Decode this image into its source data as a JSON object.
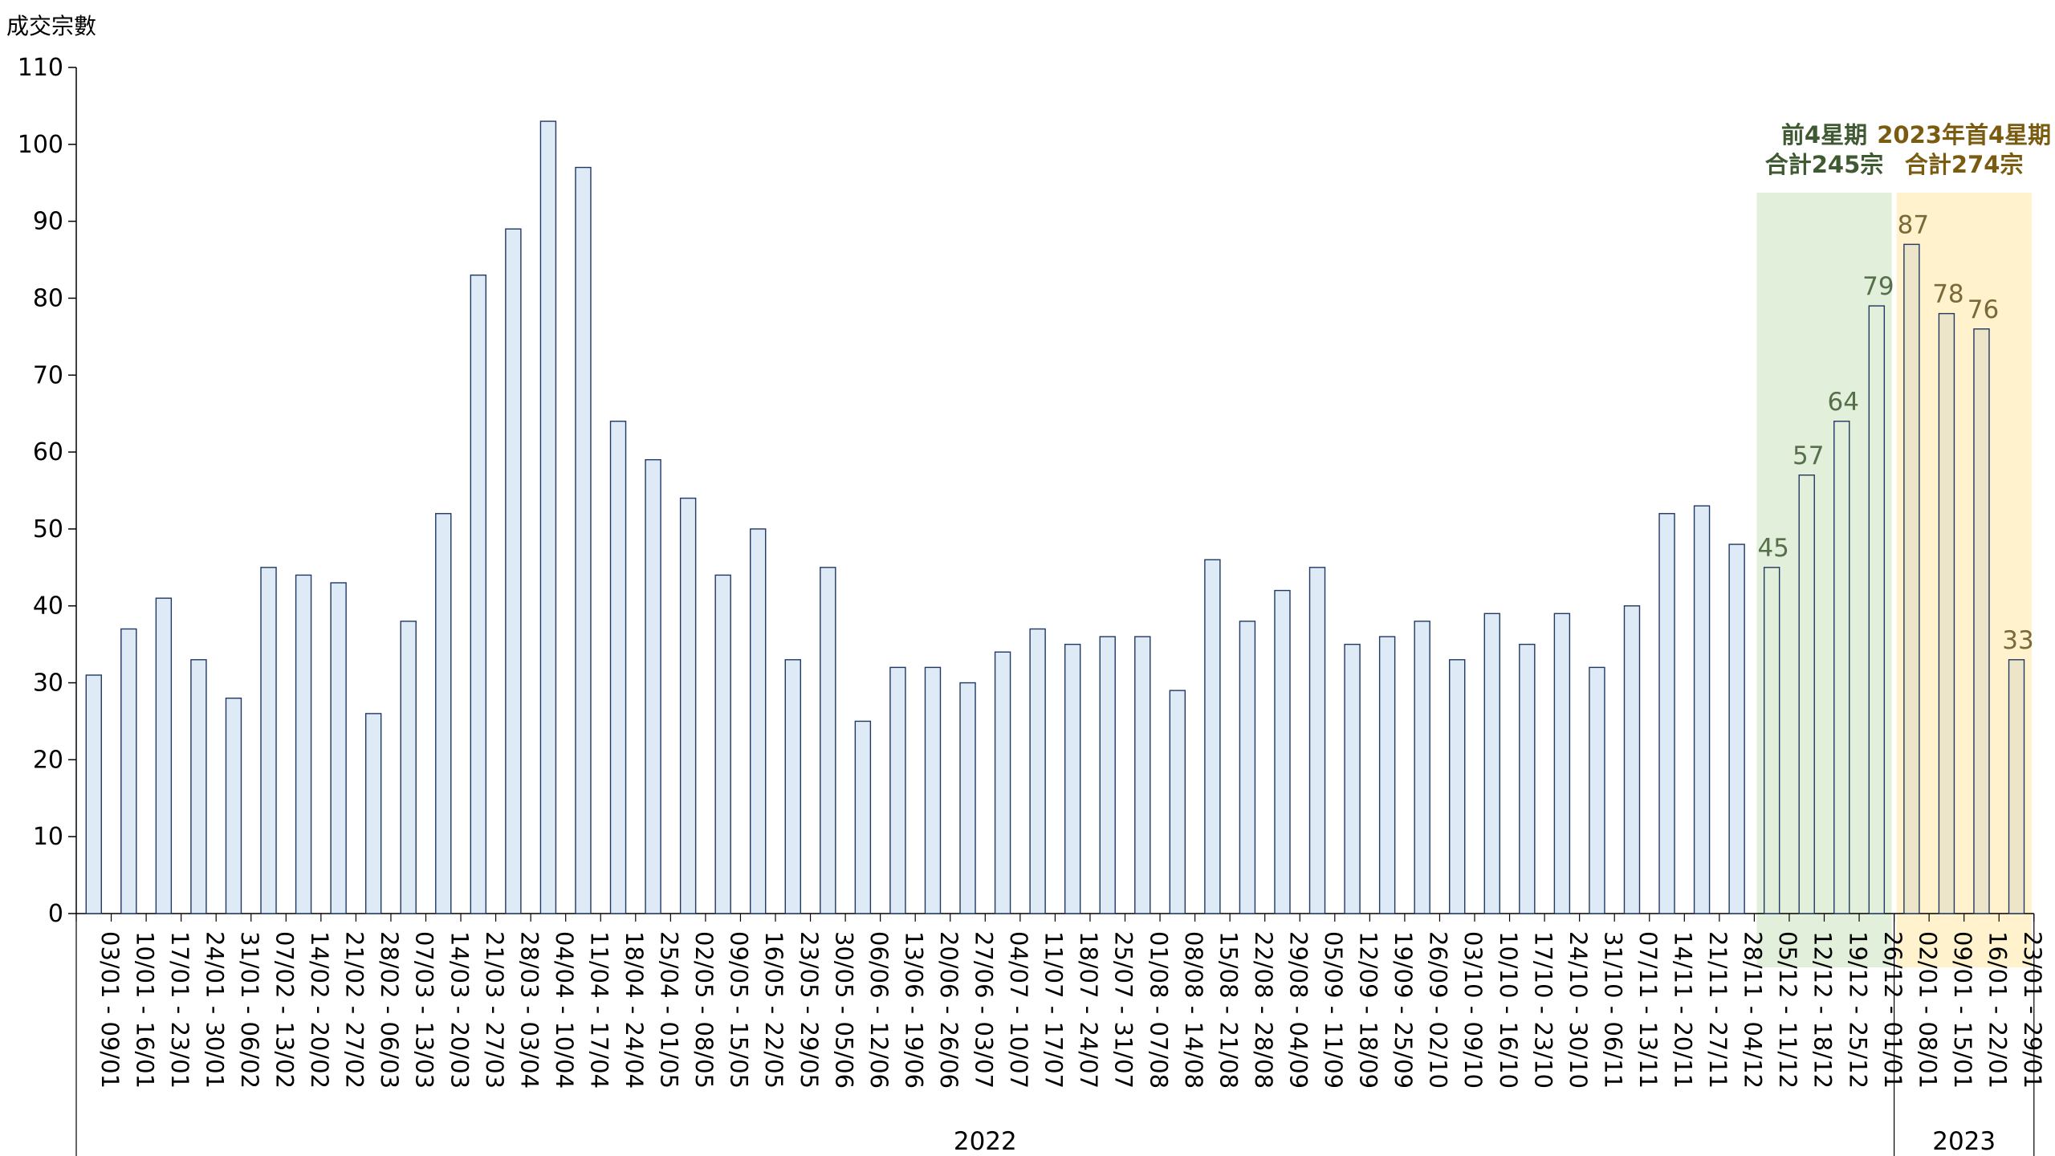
{
  "chart_data": {
    "type": "bar",
    "ylabel": "成交宗數",
    "xlabel": "",
    "ylim": [
      0,
      110
    ],
    "yticks": [
      0,
      10,
      20,
      30,
      40,
      50,
      60,
      70,
      80,
      90,
      100,
      110
    ],
    "grid": false,
    "legend": "none",
    "categories": [
      "03/01 - 09/01",
      "10/01 - 16/01",
      "17/01 - 23/01",
      "24/01 - 30/01",
      "31/01 - 06/02",
      "07/02 - 13/02",
      "14/02 - 20/02",
      "21/02 - 27/02",
      "28/02 - 06/03",
      "07/03 - 13/03",
      "14/03 - 20/03",
      "21/03 - 27/03",
      "28/03 - 03/04",
      "04/04 - 10/04",
      "11/04 - 17/04",
      "18/04 - 24/04",
      "25/04 - 01/05",
      "02/05 - 08/05",
      "09/05 - 15/05",
      "16/05 - 22/05",
      "23/05 - 29/05",
      "30/05 - 05/06",
      "06/06 - 12/06",
      "13/06 - 19/06",
      "20/06 - 26/06",
      "27/06 - 03/07",
      "04/07 - 10/07",
      "11/07 - 17/07",
      "18/07 - 24/07",
      "25/07 - 31/07",
      "01/08 - 07/08",
      "08/08 - 14/08",
      "15/08 - 21/08",
      "22/08 - 28/08",
      "29/08 - 04/09",
      "05/09 - 11/09",
      "12/09 - 18/09",
      "19/09 - 25/09",
      "26/09 - 02/10",
      "03/10 - 09/10",
      "10/10 - 16/10",
      "17/10 - 23/10",
      "24/10 - 30/10",
      "31/10 - 06/11",
      "07/11 - 13/11",
      "14/11 - 20/11",
      "21/11 - 27/11",
      "28/11 - 04/12",
      "05/12 - 11/12",
      "12/12 - 18/12",
      "19/12 - 25/12",
      "26/12 - 01/01",
      "02/01 - 08/01",
      "09/01 - 15/01",
      "16/01 - 22/01",
      "23/01 - 29/01"
    ],
    "values": [
      31,
      37,
      41,
      33,
      28,
      45,
      44,
      43,
      26,
      38,
      52,
      83,
      89,
      103,
      97,
      64,
      59,
      54,
      44,
      50,
      33,
      45,
      25,
      32,
      32,
      30,
      34,
      37,
      35,
      36,
      36,
      29,
      46,
      38,
      42,
      45,
      35,
      36,
      38,
      33,
      39,
      35,
      39,
      32,
      40,
      52,
      53,
      48,
      45,
      57,
      64,
      79,
      87,
      78,
      76,
      33
    ],
    "groups": [
      {
        "label": "2022",
        "start": 0,
        "end": 51
      },
      {
        "label": "2023",
        "start": 52,
        "end": 55
      }
    ],
    "highlights": [
      {
        "start": 48,
        "end": 51,
        "color": "#e2efda",
        "bar_color": "#e2efda",
        "label_color": "#56704b",
        "note": [
          "前4星期",
          "合計245宗"
        ],
        "note_color": "#3f5a32"
      },
      {
        "start": 52,
        "end": 55,
        "color": "#fff2cc",
        "bar_color": "#ede5c9",
        "label_color": "#7a6a3a",
        "note": [
          "2023年首4星期",
          "合計274宗"
        ],
        "note_color": "#7a5b10"
      }
    ],
    "bar_fill": "#deebf7",
    "bar_stroke": "#1f3864"
  }
}
